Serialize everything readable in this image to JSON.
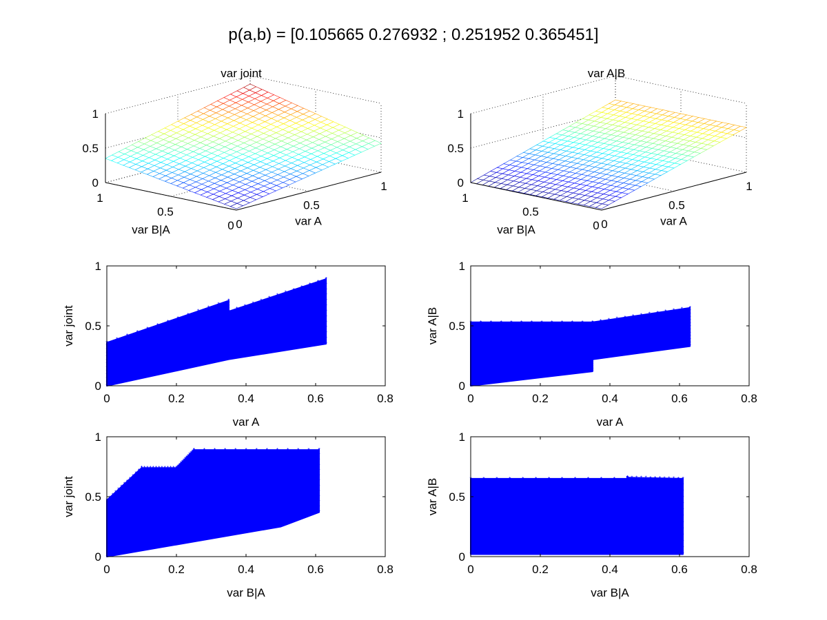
{
  "figure": {
    "suptitle": "p(a,b) = [0.105665 0.276932 ; 0.251952 0.365451]"
  },
  "chart_data": [
    {
      "type": "surface",
      "title": "var joint",
      "xlabel": "var A",
      "ylabel": "var B|A",
      "xticks": [
        "0",
        "0.5",
        "1"
      ],
      "yticks": [
        "0",
        "0.5",
        "1"
      ],
      "zticks": [
        "0",
        "0.5",
        "1"
      ],
      "xlim": [
        0,
        1
      ],
      "ylim": [
        0,
        1
      ],
      "zlim": [
        0,
        1
      ],
      "grid": true,
      "corner_values": {
        "a0_b0": 0.02,
        "a1_b0": 0.42,
        "a0_b1": 0.35,
        "a1_b1": 0.88
      }
    },
    {
      "type": "surface",
      "title": "var A|B",
      "xlabel": "var A",
      "ylabel": "var B|A",
      "xticks": [
        "0",
        "0.5",
        "1"
      ],
      "yticks": [
        "0",
        "0.5",
        "1"
      ],
      "zticks": [
        "0",
        "0.5",
        "1"
      ],
      "xlim": [
        0,
        1
      ],
      "ylim": [
        0,
        1
      ],
      "zlim": [
        0,
        1
      ],
      "grid": true,
      "corner_values": {
        "a0_b0": 0.02,
        "a1_b0": 0.65,
        "a0_b1": 0.0,
        "a1_b1": 0.65
      }
    },
    {
      "type": "scatter",
      "title": "",
      "xlabel": "var A",
      "ylabel": "var joint",
      "xlim": [
        0,
        0.8
      ],
      "ylim": [
        0,
        1
      ],
      "xticks": [
        "0",
        "0.2",
        "0.4",
        "0.6",
        "0.8"
      ],
      "yticks": [
        "0",
        "0.5",
        "1"
      ],
      "series": [
        {
          "color": "#0000ff",
          "points": [
            [
              0,
              0
            ],
            [
              0.0,
              0.36
            ],
            [
              0.35,
              0.71
            ],
            [
              0.35,
              0.62
            ],
            [
              0.63,
              0.89
            ],
            [
              0.63,
              0.35
            ],
            [
              0.35,
              0.22
            ],
            [
              0.0,
              0.0
            ]
          ]
        }
      ]
    },
    {
      "type": "scatter",
      "title": "",
      "xlabel": "var A",
      "ylabel": "var A|B",
      "xlim": [
        0,
        0.8
      ],
      "ylim": [
        0,
        1
      ],
      "xticks": [
        "0",
        "0.2",
        "0.4",
        "0.6",
        "0.8"
      ],
      "yticks": [
        "0",
        "0.5",
        "1"
      ],
      "series": [
        {
          "color": "#0000ff",
          "points": [
            [
              0,
              0.53
            ],
            [
              0.35,
              0.53
            ],
            [
              0.63,
              0.65
            ],
            [
              0.63,
              0.33
            ],
            [
              0.35,
              0.22
            ],
            [
              0.35,
              0.12
            ],
            [
              0,
              0
            ]
          ]
        }
      ]
    },
    {
      "type": "scatter",
      "title": "",
      "xlabel": "var B|A",
      "ylabel": "var joint",
      "xlim": [
        0,
        0.8
      ],
      "ylim": [
        0,
        1
      ],
      "xticks": [
        "0",
        "0.2",
        "0.4",
        "0.6",
        "0.8"
      ],
      "yticks": [
        "0",
        "0.5",
        "1"
      ],
      "series": [
        {
          "color": "#0000ff",
          "points": [
            [
              0,
              0.47
            ],
            [
              0.1,
              0.74
            ],
            [
              0.2,
              0.74
            ],
            [
              0.25,
              0.89
            ],
            [
              0.61,
              0.89
            ],
            [
              0.61,
              0.37
            ],
            [
              0.5,
              0.25
            ],
            [
              0,
              0
            ]
          ]
        }
      ]
    },
    {
      "type": "scatter",
      "title": "",
      "xlabel": "var B|A",
      "ylabel": "var A|B",
      "xlim": [
        0,
        0.8
      ],
      "ylim": [
        0,
        1
      ],
      "xticks": [
        "0",
        "0.2",
        "0.4",
        "0.6",
        "0.8"
      ],
      "yticks": [
        "0",
        "0.5",
        "1"
      ],
      "series": [
        {
          "color": "#0000ff",
          "points": [
            [
              0,
              0.65
            ],
            [
              0.45,
              0.65
            ],
            [
              0.45,
              0.66
            ],
            [
              0.61,
              0.65
            ],
            [
              0.61,
              0.02
            ],
            [
              0,
              0.02
            ]
          ]
        }
      ]
    }
  ]
}
